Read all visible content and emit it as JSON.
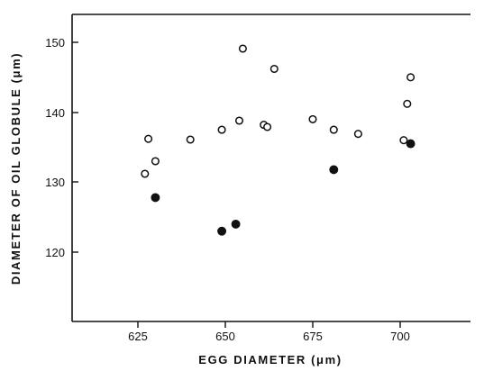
{
  "chart_data": {
    "type": "scatter",
    "xlabel": "EGG DIAMETER (μm)",
    "ylabel": "DIAMETER OF OIL GLOBULE (μm)",
    "xlim": [
      606,
      720
    ],
    "ylim": [
      110,
      154.5
    ],
    "x_ticks": [
      "625",
      "650",
      "675",
      "700"
    ],
    "y_ticks": [
      "120",
      "130",
      "140",
      "150"
    ],
    "grid": false,
    "series": [
      {
        "marker": "open-circle",
        "color": "#111111",
        "points": [
          {
            "x": 627,
            "y": 131.2
          },
          {
            "x": 628,
            "y": 136.2
          },
          {
            "x": 630,
            "y": 133.0
          },
          {
            "x": 640,
            "y": 136.1
          },
          {
            "x": 649,
            "y": 137.5
          },
          {
            "x": 654,
            "y": 138.8
          },
          {
            "x": 655,
            "y": 149.1
          },
          {
            "x": 661,
            "y": 138.2
          },
          {
            "x": 662,
            "y": 137.9
          },
          {
            "x": 664,
            "y": 146.2
          },
          {
            "x": 675,
            "y": 139.0
          },
          {
            "x": 681,
            "y": 137.5
          },
          {
            "x": 688,
            "y": 136.9
          },
          {
            "x": 701,
            "y": 136.0
          },
          {
            "x": 702,
            "y": 141.2
          },
          {
            "x": 703,
            "y": 145.0
          }
        ]
      },
      {
        "marker": "filled-circle",
        "color": "#111111",
        "points": [
          {
            "x": 630,
            "y": 127.8
          },
          {
            "x": 649,
            "y": 123.0
          },
          {
            "x": 653,
            "y": 124.0
          },
          {
            "x": 681,
            "y": 131.8
          },
          {
            "x": 703,
            "y": 135.5
          }
        ]
      }
    ]
  }
}
